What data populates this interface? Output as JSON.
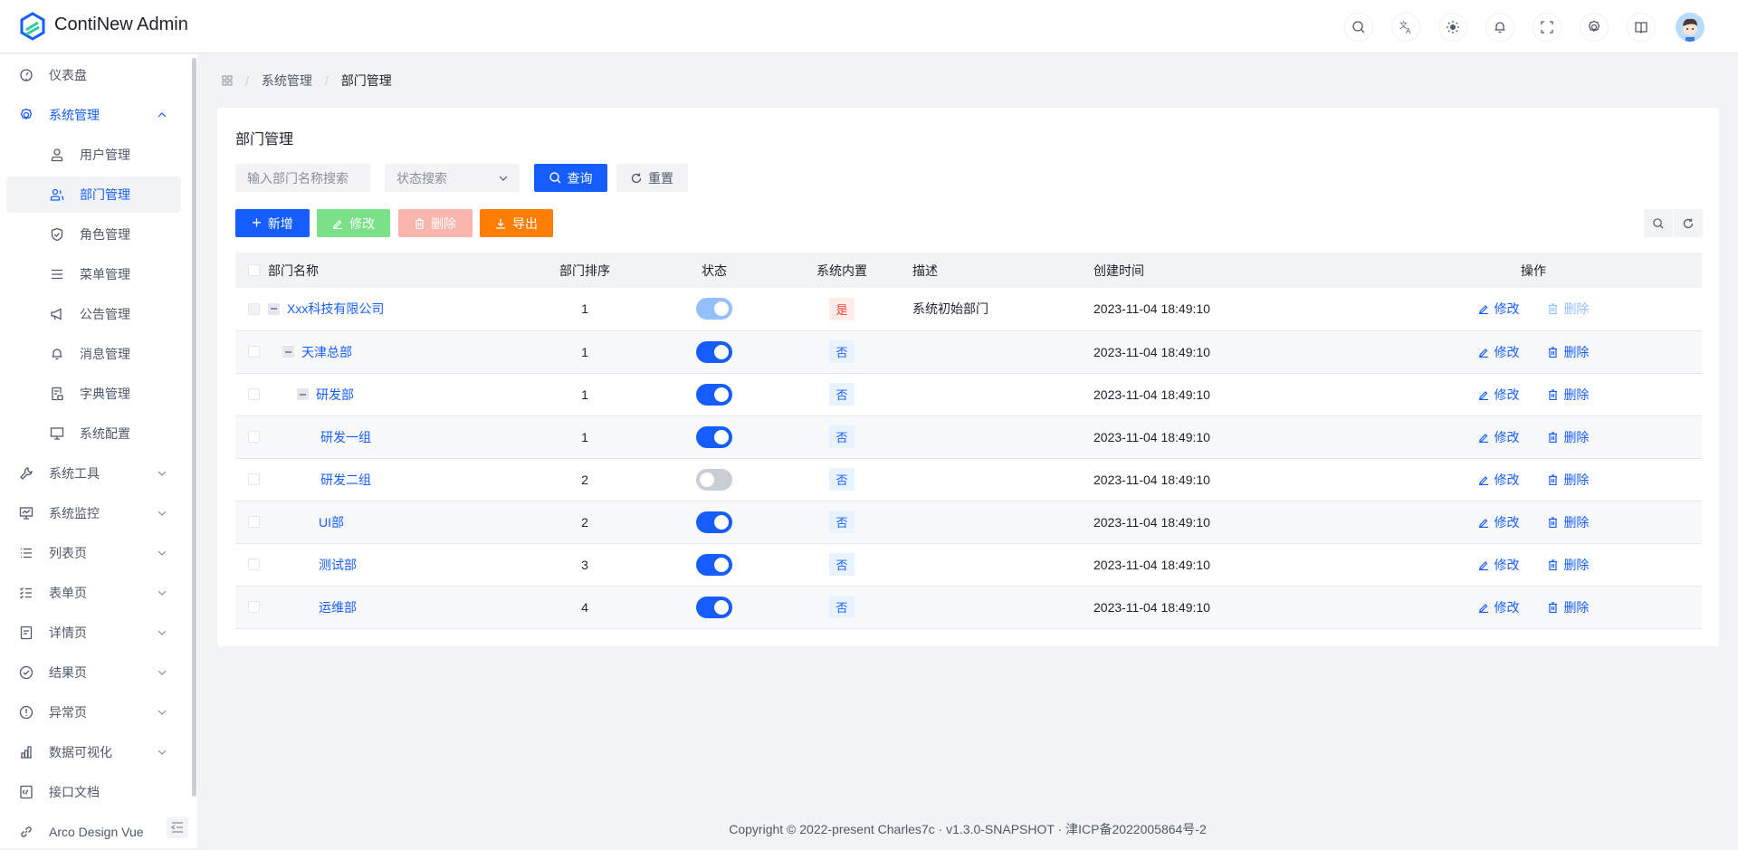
{
  "app": {
    "title": "ContiNew Admin"
  },
  "header_icons": [
    "search-icon",
    "translate-icon",
    "theme-icon",
    "bell-icon",
    "fullscreen-icon",
    "settings-icon",
    "book-icon"
  ],
  "sidebar": {
    "items": [
      {
        "label": "仪表盘",
        "icon": "dashboard-icon",
        "level": 0
      },
      {
        "label": "系统管理",
        "icon": "gear-icon",
        "level": 0,
        "expanded": true,
        "active": true
      },
      {
        "label": "用户管理",
        "icon": "user-icon",
        "level": 1
      },
      {
        "label": "部门管理",
        "icon": "user-group-icon",
        "level": 1,
        "selected": true
      },
      {
        "label": "角色管理",
        "icon": "shield-icon",
        "level": 1
      },
      {
        "label": "菜单管理",
        "icon": "menu-icon",
        "level": 1
      },
      {
        "label": "公告管理",
        "icon": "megaphone-icon",
        "level": 1
      },
      {
        "label": "消息管理",
        "icon": "bell-icon",
        "level": 1
      },
      {
        "label": "字典管理",
        "icon": "dictionary-icon",
        "level": 1
      },
      {
        "label": "系统配置",
        "icon": "desktop-icon",
        "level": 1
      },
      {
        "label": "系统工具",
        "icon": "wrench-icon",
        "level": 0,
        "expandable": true
      },
      {
        "label": "系统监控",
        "icon": "monitor-icon",
        "level": 0,
        "expandable": true
      },
      {
        "label": "列表页",
        "icon": "list-icon",
        "level": 0,
        "expandable": true
      },
      {
        "label": "表单页",
        "icon": "checklist-icon",
        "level": 0,
        "expandable": true
      },
      {
        "label": "详情页",
        "icon": "file-icon",
        "level": 0,
        "expandable": true
      },
      {
        "label": "结果页",
        "icon": "check-circle-icon",
        "level": 0,
        "expandable": true
      },
      {
        "label": "异常页",
        "icon": "exclamation-circle-icon",
        "level": 0,
        "expandable": true
      },
      {
        "label": "数据可视化",
        "icon": "bar-chart-icon",
        "level": 0,
        "expandable": true
      },
      {
        "label": "接口文档",
        "icon": "code-icon",
        "level": 0
      },
      {
        "label": "Arco Design Vue",
        "icon": "link-icon",
        "level": 0
      }
    ]
  },
  "breadcrumb": [
    "系统管理",
    "部门管理"
  ],
  "page": {
    "title": "部门管理",
    "search_placeholder": "输入部门名称搜索",
    "status_placeholder": "状态搜索",
    "query": "查询",
    "reset": "重置",
    "add": "新增",
    "edit": "修改",
    "delete": "删除",
    "export": "导出"
  },
  "colors": {
    "primary": "#165dff",
    "success": "#7be188",
    "danger": "#f9b4ae",
    "warning": "#ff7d00"
  },
  "table": {
    "columns": [
      "部门名称",
      "部门排序",
      "状态",
      "系统内置",
      "描述",
      "创建时间",
      "操作"
    ],
    "edit_label": "修改",
    "delete_label": "删除",
    "rows": [
      {
        "name": "Xxx科技有限公司",
        "level": 0,
        "has_children": true,
        "sort": "1",
        "enabled": true,
        "status_disabled": true,
        "builtin": "是",
        "desc": "系统初始部门",
        "created": "2023-11-04 18:49:10",
        "delete_disabled": true
      },
      {
        "name": "天津总部",
        "level": 1,
        "has_children": true,
        "sort": "1",
        "enabled": true,
        "builtin": "否",
        "desc": "",
        "created": "2023-11-04 18:49:10"
      },
      {
        "name": "研发部",
        "level": 2,
        "has_children": true,
        "sort": "1",
        "enabled": true,
        "builtin": "否",
        "desc": "",
        "created": "2023-11-04 18:49:10"
      },
      {
        "name": "研发一组",
        "level": 3,
        "has_children": false,
        "sort": "1",
        "enabled": true,
        "builtin": "否",
        "desc": "",
        "created": "2023-11-04 18:49:10"
      },
      {
        "name": "研发二组",
        "level": 3,
        "has_children": false,
        "sort": "2",
        "enabled": false,
        "builtin": "否",
        "desc": "",
        "created": "2023-11-04 18:49:10"
      },
      {
        "name": "UI部",
        "level": 2,
        "has_children": false,
        "sort": "2",
        "enabled": true,
        "builtin": "否",
        "desc": "",
        "created": "2023-11-04 18:49:10"
      },
      {
        "name": "测试部",
        "level": 2,
        "has_children": false,
        "sort": "3",
        "enabled": true,
        "builtin": "否",
        "desc": "",
        "created": "2023-11-04 18:49:10"
      },
      {
        "name": "运维部",
        "level": 2,
        "has_children": false,
        "sort": "4",
        "enabled": true,
        "builtin": "否",
        "desc": "",
        "created": "2023-11-04 18:49:10"
      }
    ]
  },
  "footer": "Copyright © 2022-present Charles7c · v1.3.0-SNAPSHOT · 津ICP备2022005864号-2"
}
